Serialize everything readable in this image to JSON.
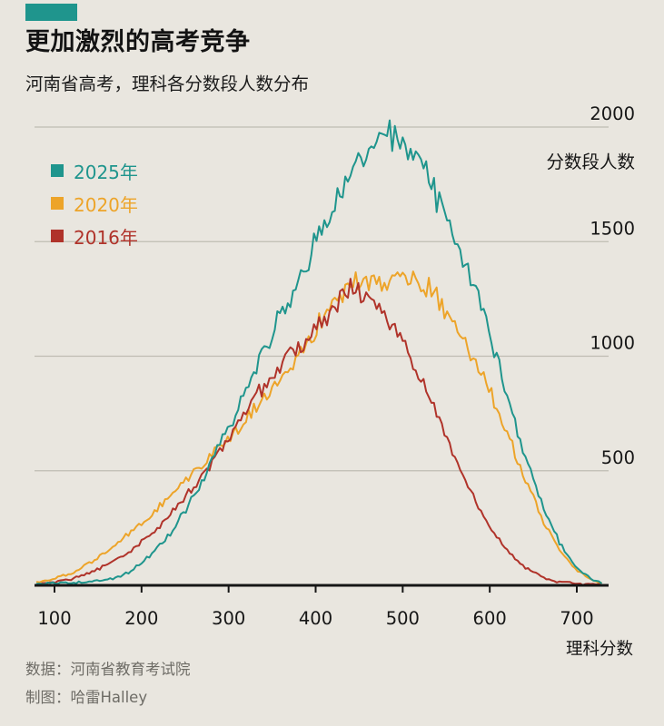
{
  "header": {
    "title": "更加激烈的高考竞争",
    "subtitle": "河南省高考，理科各分数段人数分布"
  },
  "colors": {
    "background": "#e9e6df",
    "accent_teal": "#1f958d",
    "orange": "#eda429",
    "red": "#b0332a",
    "grid": "#bfbcb2",
    "text": "#161616",
    "footer_text": "#6e6c66"
  },
  "legend": [
    {
      "label": "2025年",
      "color": "#1f958d"
    },
    {
      "label": "2020年",
      "color": "#eda429"
    },
    {
      "label": "2016年",
      "color": "#b0332a"
    }
  ],
  "chart_data": {
    "type": "line",
    "title": "更加激烈的高考竞争",
    "subtitle": "河南省高考，理科各分数段人数分布",
    "xlabel": "理科分数",
    "ylabel": "分数段人数",
    "x_ticks": [
      100,
      200,
      300,
      400,
      500,
      600,
      700
    ],
    "y_ticks": [
      2000,
      1500,
      1000,
      500
    ],
    "xlim": [
      80,
      730
    ],
    "ylim": [
      0,
      2000
    ],
    "grid": "horizontal",
    "legend_position": "top-left",
    "noise": "lines are noisy raw counts per score point",
    "x": [
      80,
      100,
      120,
      140,
      160,
      180,
      200,
      220,
      240,
      260,
      280,
      300,
      320,
      340,
      360,
      380,
      400,
      420,
      440,
      460,
      480,
      500,
      520,
      540,
      560,
      580,
      600,
      620,
      640,
      660,
      680,
      700,
      720,
      730
    ],
    "series": [
      {
        "name": "2025年",
        "color": "#1f958d",
        "values": [
          5,
          8,
          12,
          15,
          25,
          45,
          95,
          165,
          265,
          390,
          530,
          690,
          850,
          1015,
          1175,
          1335,
          1505,
          1655,
          1785,
          1905,
          1960,
          1930,
          1835,
          1695,
          1525,
          1325,
          1090,
          835,
          575,
          355,
          185,
          75,
          20,
          8
        ]
      },
      {
        "name": "2020年",
        "color": "#eda429",
        "values": [
          12,
          28,
          55,
          95,
          145,
          205,
          270,
          345,
          420,
          490,
          560,
          640,
          725,
          815,
          905,
          1010,
          1120,
          1220,
          1300,
          1340,
          1350,
          1340,
          1325,
          1255,
          1150,
          1010,
          845,
          655,
          465,
          295,
          155,
          65,
          18,
          8
        ]
      },
      {
        "name": "2016年",
        "color": "#b0332a",
        "values": [
          6,
          14,
          28,
          52,
          88,
          132,
          190,
          258,
          338,
          430,
          540,
          650,
          760,
          868,
          958,
          1048,
          1130,
          1210,
          1285,
          1258,
          1175,
          1055,
          905,
          745,
          565,
          395,
          255,
          148,
          78,
          38,
          16,
          7,
          3,
          2
        ]
      }
    ]
  },
  "footer": {
    "source": "数据：河南省教育考试院",
    "credit": "制图：哈雷Halley"
  }
}
